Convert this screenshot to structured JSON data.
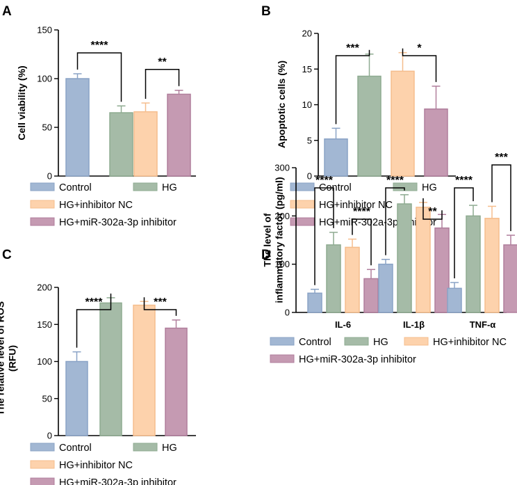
{
  "colors": {
    "control": "#a2b7d3",
    "hg": "#a5bba7",
    "nc": "#fdd2ac",
    "inhibitor": "#c59ab2",
    "control_edge": "#8aa3c6",
    "hg_edge": "#8eab91",
    "nc_edge": "#f5bd8d",
    "inhibitor_edge": "#b07e9c"
  },
  "legend_labels": [
    "Control",
    "HG",
    "HG+inhibitor NC",
    "HG+miR-302a-3p inhibitor"
  ],
  "chart_data": [
    {
      "panel": "A",
      "type": "bar",
      "ylabel_lines": [
        "Cell viability (%)"
      ],
      "ylim": [
        0,
        150
      ],
      "yticks": [
        0,
        50,
        100,
        150
      ],
      "categories": [
        "Control",
        "HG",
        "HG+inhibitor NC",
        "HG+miR-302a-3p inhibitor"
      ],
      "values": [
        100,
        65,
        66,
        84
      ],
      "errors": [
        5,
        7,
        9,
        4
      ],
      "significance": [
        {
          "from": 0,
          "to": 1,
          "label": "****"
        },
        {
          "from": 2,
          "to": 3,
          "label": "**"
        }
      ]
    },
    {
      "panel": "B",
      "type": "bar",
      "ylabel_lines": [
        "Apoptotic cells (%)"
      ],
      "ylim": [
        0,
        20
      ],
      "yticks": [
        0,
        5,
        10,
        15,
        20
      ],
      "categories": [
        "Control",
        "HG",
        "HG+inhibitor NC",
        "HG+miR-302a-3p inhibitor"
      ],
      "values": [
        5.2,
        14,
        14.7,
        9.4
      ],
      "errors": [
        1.5,
        3.1,
        2.6,
        3.2
      ],
      "significance": [
        {
          "from": 0,
          "to": 1,
          "label": "***"
        },
        {
          "from": 2,
          "to": 3,
          "label": "*"
        }
      ]
    },
    {
      "panel": "C",
      "type": "bar",
      "ylabel_lines": [
        "The relative level of ROS",
        "(RFU)"
      ],
      "ylim": [
        0,
        200
      ],
      "yticks": [
        0,
        50,
        100,
        150,
        200
      ],
      "categories": [
        "Control",
        "HG",
        "HG+inhibitor NC",
        "HG+miR-302a-3p inhibitor"
      ],
      "values": [
        100,
        179,
        176,
        145
      ],
      "errors": [
        13,
        7,
        5,
        11
      ],
      "significance": [
        {
          "from": 0,
          "to": 1,
          "label": "****"
        },
        {
          "from": 2,
          "to": 3,
          "label": "***"
        }
      ]
    },
    {
      "panel": "D",
      "type": "bar",
      "ylabel_lines": [
        "The level of",
        "inflammatory factor (pg/ml)"
      ],
      "ylim": [
        0,
        300
      ],
      "yticks": [
        0,
        100,
        200,
        300
      ],
      "categories": [
        "IL-6",
        "IL-1β",
        "TNF-α"
      ],
      "series": [
        {
          "name": "Control",
          "values": [
            40,
            100,
            50
          ],
          "errors": [
            8,
            10,
            12
          ]
        },
        {
          "name": "HG",
          "values": [
            140,
            225,
            200
          ],
          "errors": [
            26,
            19,
            22
          ]
        },
        {
          "name": "HG+inhibitor NC",
          "values": [
            135,
            218,
            195
          ],
          "errors": [
            17,
            10,
            25
          ]
        },
        {
          "name": "HG+miR-302a-3p inhibitor",
          "values": [
            70,
            175,
            140
          ],
          "errors": [
            19,
            28,
            20
          ]
        }
      ],
      "significance": [
        {
          "category": 0,
          "from": 0,
          "to": 1,
          "label": "****"
        },
        {
          "category": 0,
          "from": 2,
          "to": 3,
          "label": "****"
        },
        {
          "category": 1,
          "from": 0,
          "to": 1,
          "label": "****"
        },
        {
          "category": 1,
          "from": 2,
          "to": 3,
          "label": "**"
        },
        {
          "category": 2,
          "from": 0,
          "to": 1,
          "label": "****"
        },
        {
          "category": 2,
          "from": 2,
          "to": 3,
          "label": "***"
        }
      ]
    }
  ]
}
